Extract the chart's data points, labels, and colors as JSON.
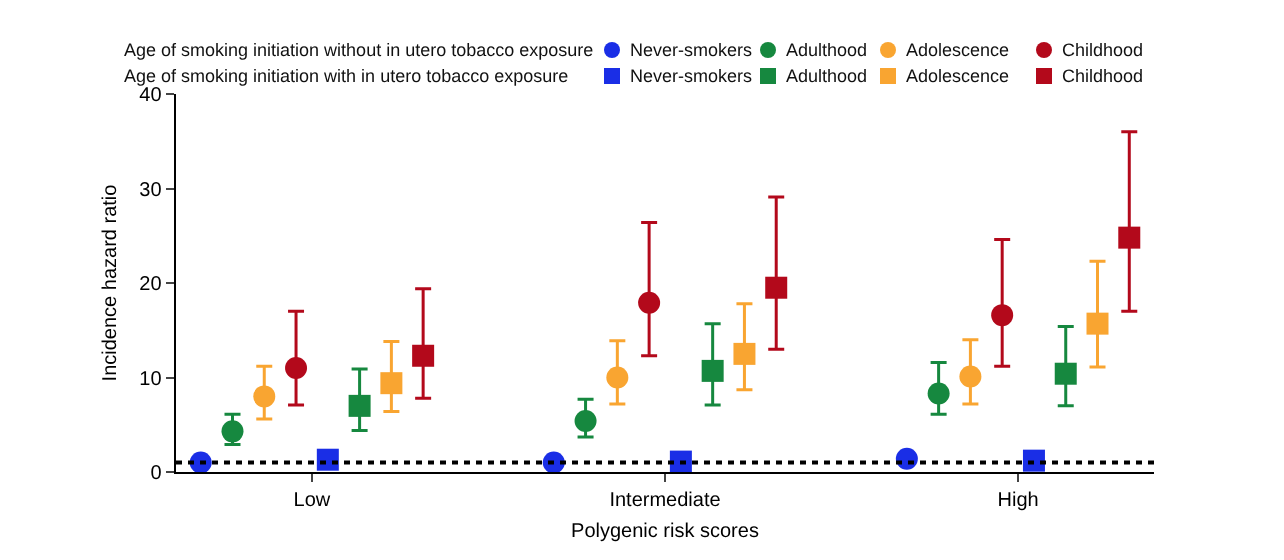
{
  "chart_data": {
    "type": "scatter",
    "xlabel": "Polygenic risk scores",
    "ylabel": "Incidence hazard ratio",
    "categories": [
      "Low",
      "Intermediate",
      "High"
    ],
    "ylim": [
      0,
      40
    ],
    "yticks": [
      0,
      10,
      20,
      30,
      40
    ],
    "grid": false,
    "legend": "top right",
    "annotations": [
      "Age of smoking initiation without in utero tobacco exposure",
      "Age of smoking initiation with in utero tobacco exposure"
    ],
    "ref_lines": [
      {
        "axis": "y",
        "value": 1,
        "color": "#000000",
        "line_style": "dotted"
      }
    ],
    "series": [
      {
        "name": "Never-smokers",
        "color": "#1a2ee6",
        "marker": "circle",
        "values": [
          1.0,
          1.0,
          1.4
        ],
        "errors": [
          null,
          null,
          null
        ]
      },
      {
        "name": "Adulthood",
        "color": "#16883f",
        "marker": "circle",
        "values": [
          4.3,
          5.4,
          8.3
        ],
        "errors": [
          [
            2.9,
            6.1
          ],
          [
            3.7,
            7.7
          ],
          [
            6.1,
            11.6
          ]
        ]
      },
      {
        "name": "Adolescence",
        "color": "#f9a531",
        "marker": "circle",
        "values": [
          8.0,
          10.0,
          10.1
        ],
        "errors": [
          [
            5.6,
            11.2
          ],
          [
            7.2,
            13.9
          ],
          [
            7.2,
            14.0
          ]
        ]
      },
      {
        "name": "Childhood",
        "color": "#b3091b",
        "marker": "circle",
        "values": [
          11.0,
          17.9,
          16.6
        ],
        "errors": [
          [
            7.1,
            17.0
          ],
          [
            12.3,
            26.4
          ],
          [
            11.2,
            24.6
          ]
        ]
      },
      {
        "name": "Never-smokers",
        "color": "#1a2ee6",
        "marker": "square",
        "values": [
          1.3,
          1.1,
          1.2
        ],
        "errors": [
          null,
          null,
          null
        ]
      },
      {
        "name": "Adulthood",
        "color": "#16883f",
        "marker": "square",
        "values": [
          7.0,
          10.7,
          10.4
        ],
        "errors": [
          [
            4.4,
            10.9
          ],
          [
            7.1,
            15.7
          ],
          [
            7.0,
            15.4
          ]
        ]
      },
      {
        "name": "Adolescence",
        "color": "#f9a531",
        "marker": "square",
        "values": [
          9.4,
          12.5,
          15.7
        ],
        "errors": [
          [
            6.4,
            13.8
          ],
          [
            8.7,
            17.8
          ],
          [
            11.1,
            22.3
          ]
        ]
      },
      {
        "name": "Childhood",
        "color": "#b3091b",
        "marker": "square",
        "values": [
          12.3,
          19.5,
          24.8
        ],
        "errors": [
          [
            7.8,
            19.4
          ],
          [
            13.0,
            29.1
          ],
          [
            17.0,
            36.0
          ]
        ]
      }
    ]
  }
}
